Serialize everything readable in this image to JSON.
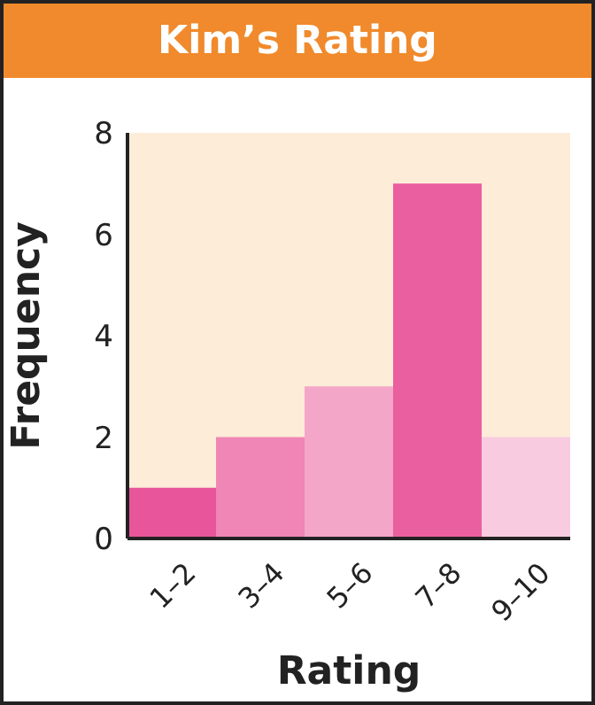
{
  "chart_data": {
    "type": "bar",
    "title": "Kim’s Rating",
    "xlabel": "Rating",
    "ylabel": "Frequency",
    "categories": [
      "1–2",
      "3–4",
      "5–6",
      "7–8",
      "9–10"
    ],
    "values": [
      1,
      2,
      3,
      7,
      2
    ],
    "colors": [
      "#e8559a",
      "#ef86b5",
      "#f4a6c8",
      "#ea5f9f",
      "#f8cbe0"
    ],
    "ylim": [
      0,
      8
    ],
    "yticks": [
      0,
      2,
      4,
      6,
      8
    ],
    "grid": false
  }
}
